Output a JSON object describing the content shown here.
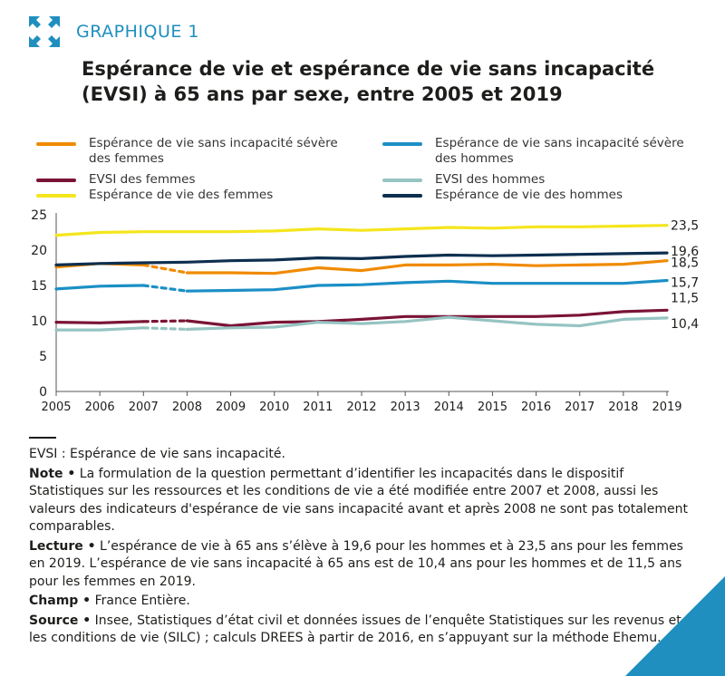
{
  "header": {
    "graph_label": "GRAPHIQUE 1",
    "title": "Espérance de vie et espérance de vie sans incapacité (EVSI) à 65 ans par sexe, entre 2005 et 2019"
  },
  "colors": {
    "accent": "#1e8fbf",
    "orange": "#f08a00",
    "blue": "#1b8fc6",
    "burgundy": "#7a1435",
    "teal": "#96c4c2",
    "yellow": "#f5e51c",
    "navy": "#0d2f4f"
  },
  "chart_data": {
    "type": "line",
    "x": [
      "2005",
      "2006",
      "2007",
      "2008",
      "2009",
      "2010",
      "2011",
      "2012",
      "2013",
      "2014",
      "2015",
      "2016",
      "2017",
      "2018",
      "2019"
    ],
    "ylim": [
      0,
      25
    ],
    "yticks": [
      "0",
      "5",
      "10",
      "15",
      "20",
      "25"
    ],
    "grid": false,
    "legend_position": "top",
    "dashed_segment": [
      "2007",
      "2008"
    ],
    "series": [
      {
        "name": "Espérance de vie sans incapacité sévère des femmes",
        "color": "#f08a00",
        "values": [
          17.6,
          18.1,
          17.9,
          16.8,
          16.8,
          16.7,
          17.5,
          17.1,
          17.9,
          17.9,
          18.0,
          17.8,
          17.9,
          18.0,
          18.5
        ],
        "end_label": "18,5"
      },
      {
        "name": "Espérance de vie sans incapacité sévère des hommes",
        "color": "#1b8fc6",
        "values": [
          14.5,
          14.9,
          15.0,
          14.2,
          14.3,
          14.4,
          15.0,
          15.1,
          15.4,
          15.6,
          15.3,
          15.3,
          15.3,
          15.3,
          15.7
        ],
        "end_label": "15,7"
      },
      {
        "name": "EVSI des femmes",
        "color": "#7a1435",
        "values": [
          9.8,
          9.7,
          9.9,
          10.0,
          9.3,
          9.8,
          9.9,
          10.2,
          10.6,
          10.6,
          10.6,
          10.6,
          10.8,
          11.3,
          11.5
        ],
        "end_label": "11,5"
      },
      {
        "name": "EVSI des hommes",
        "color": "#96c4c2",
        "values": [
          8.7,
          8.7,
          9.0,
          8.8,
          9.0,
          9.1,
          9.8,
          9.6,
          9.9,
          10.5,
          10.0,
          9.5,
          9.3,
          10.2,
          10.4
        ],
        "end_label": "10,4"
      },
      {
        "name": "Espérance de vie des femmes",
        "color": "#f5e51c",
        "values": [
          22.1,
          22.5,
          22.6,
          22.6,
          22.6,
          22.7,
          23.0,
          22.8,
          23.0,
          23.2,
          23.1,
          23.3,
          23.3,
          23.4,
          23.5
        ],
        "end_label": "23,5"
      },
      {
        "name": "Espérance de vie des hommes",
        "color": "#0d2f4f",
        "values": [
          17.9,
          18.1,
          18.2,
          18.3,
          18.5,
          18.6,
          18.9,
          18.8,
          19.1,
          19.3,
          19.2,
          19.3,
          19.4,
          19.5,
          19.6
        ],
        "end_label": "19,6"
      }
    ]
  },
  "notes": {
    "evsi_def": "EVSI : Espérance de vie sans incapacité.",
    "note_label": "Note •",
    "note_text": " La formulation de la question permettant d’identifier les incapacités dans le dispositif Statistiques sur les ressources et les conditions de vie a été modifiée entre 2007 et 2008, aussi les valeurs des indicateurs d'espérance de vie sans incapacité avant et après 2008 ne sont pas totalement comparables.",
    "lecture_label": "Lecture •",
    "lecture_text": " L’espérance de vie à 65 ans s’élève à 19,6 pour les hommes et à 23,5 ans pour les femmes en 2019. L’espérance de vie sans incapacité à 65 ans est de 10,4 ans pour les hommes et de 11,5 ans pour les femmes en 2019.",
    "champ_label": "Champ •",
    "champ_text": " France Entière.",
    "source_label": "Source •",
    "source_text": " Insee, Statistiques d’état civil et données issues de l’enquête Statistiques sur les revenus et les conditions de vie (SILC) ; calculs DREES à partir de 2016, en s’appuyant sur la méthode Ehemu."
  }
}
